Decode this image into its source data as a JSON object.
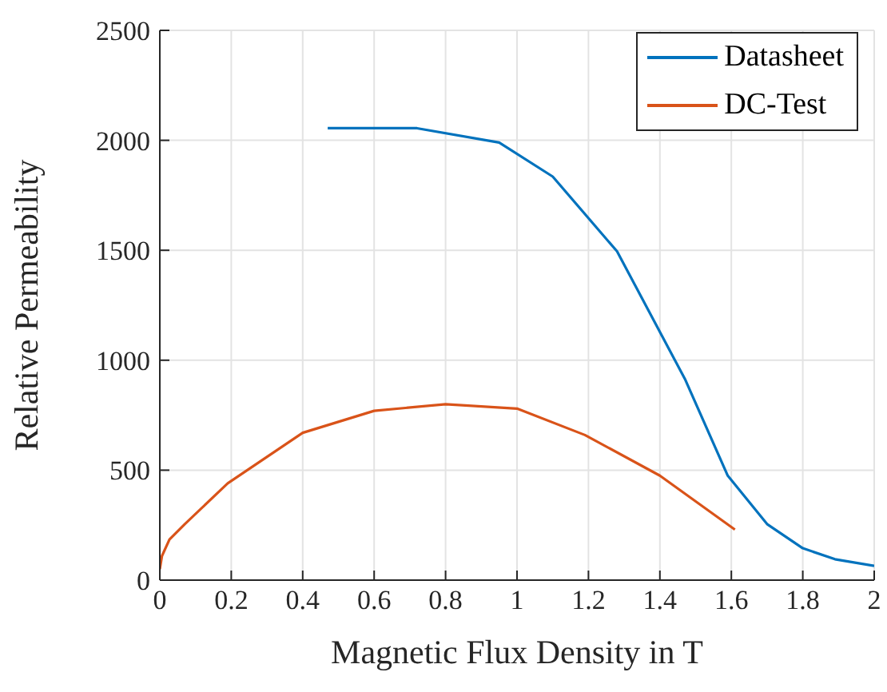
{
  "chart_data": {
    "type": "line",
    "xlabel": "Magnetic Flux Density in T",
    "ylabel": "Relative Permeability",
    "xlim": [
      0,
      2
    ],
    "xticks": [
      0,
      0.2,
      0.4,
      0.6,
      0.8,
      1,
      1.2,
      1.4,
      1.6,
      1.8,
      2
    ],
    "ylim": [
      0,
      2500
    ],
    "yticks": [
      0,
      500,
      1000,
      1500,
      2000,
      2500
    ],
    "grid": true,
    "legend": "top right",
    "marker": "none",
    "line_style": "solid",
    "series": [
      {
        "name": "Datasheet",
        "color": "#0072bd",
        "x": [
          0.47,
          0.72,
          0.95,
          1.1,
          1.28,
          1.47,
          1.59,
          1.7,
          1.8,
          1.89,
          2
        ],
        "values": [
          2055,
          2055,
          1990,
          1835,
          1495,
          915,
          475,
          255,
          145,
          95,
          65
        ]
      },
      {
        "name": "DC-Test",
        "color": "#d95319",
        "x": [
          0,
          0.006,
          0.027,
          0.07,
          0.19,
          0.4,
          0.6,
          0.8,
          1,
          1.19,
          1.4,
          1.61
        ],
        "values": [
          50,
          110,
          185,
          255,
          440,
          670,
          770,
          800,
          780,
          660,
          475,
          230
        ]
      }
    ]
  }
}
